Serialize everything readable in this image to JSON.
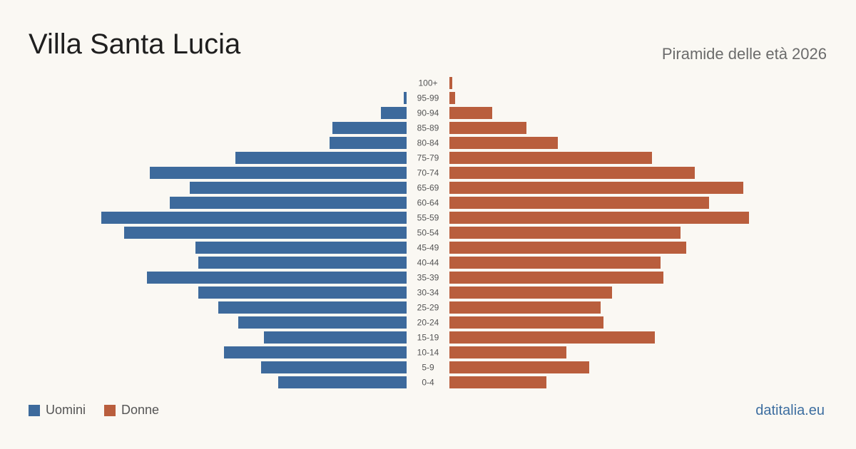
{
  "header": {
    "title": "Villa Santa Lucia",
    "subtitle": "Piramide delle età 2026"
  },
  "legend": {
    "men_label": "Uomini",
    "women_label": "Donne"
  },
  "footer": {
    "source": "datitalia.eu"
  },
  "colors": {
    "men": "#3d6a9c",
    "women": "#b95e3d"
  },
  "chart_data": {
    "type": "bar",
    "orientation": "horizontal",
    "categories": [
      "100+",
      "95-99",
      "90-94",
      "85-89",
      "80-84",
      "75-79",
      "70-74",
      "65-69",
      "60-64",
      "55-59",
      "50-54",
      "45-49",
      "40-44",
      "35-39",
      "30-34",
      "25-29",
      "20-24",
      "15-19",
      "10-14",
      "5-9",
      "0-4"
    ],
    "series": [
      {
        "name": "Uomini",
        "values": [
          0,
          1,
          9,
          26,
          27,
          60,
          90,
          76,
          83,
          107,
          99,
          74,
          73,
          91,
          73,
          66,
          59,
          50,
          64,
          51,
          45
        ]
      },
      {
        "name": "Donne",
        "values": [
          1,
          2,
          15,
          27,
          38,
          71,
          86,
          103,
          91,
          105,
          81,
          83,
          74,
          75,
          57,
          53,
          54,
          72,
          41,
          49,
          34
        ]
      }
    ]
  }
}
